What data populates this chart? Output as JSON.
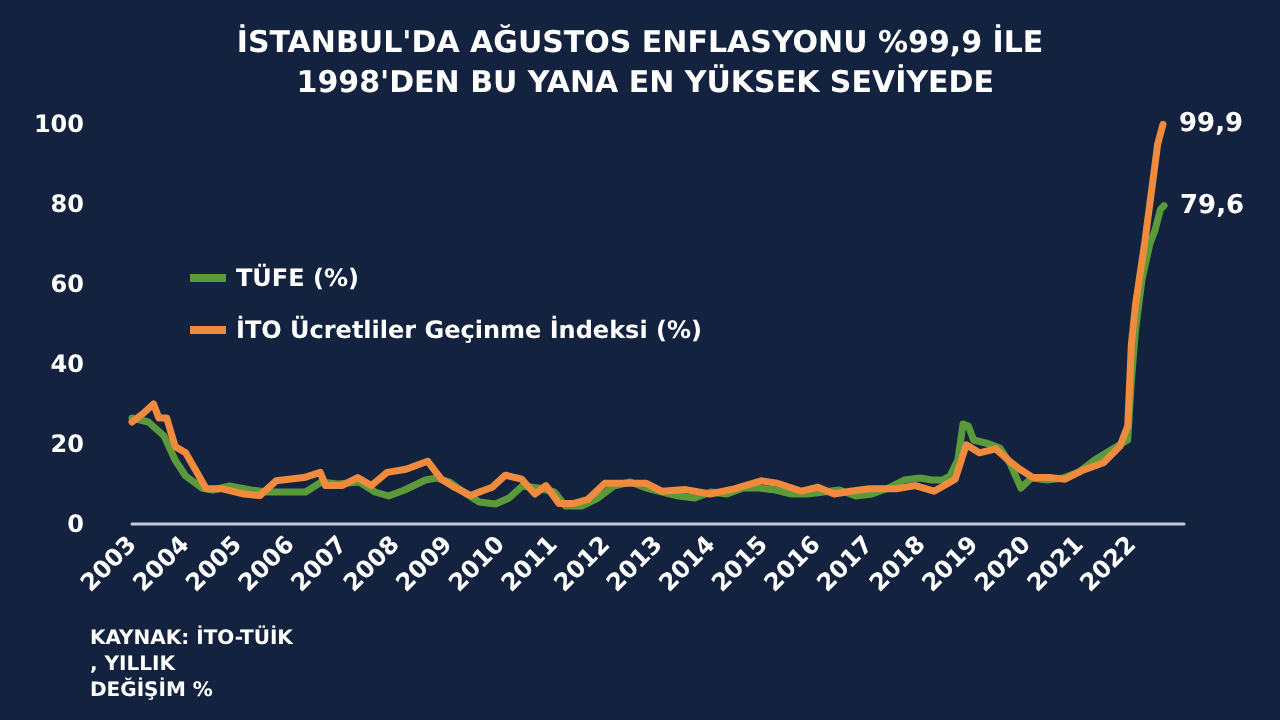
{
  "chart_data": {
    "type": "line",
    "title": "İSTANBUL'DA AĞUSTOS ENFLASYONU %99,9 İLE 1998'DEN BU YANA EN YÜKSEK SEVİYEDE",
    "xlim": [
      2003,
      2023
    ],
    "xticks": [
      2003,
      2004,
      2005,
      2006,
      2007,
      2008,
      2009,
      2010,
      2011,
      2012,
      2013,
      2014,
      2015,
      2016,
      2017,
      2018,
      2019,
      2020,
      2021,
      2022
    ],
    "ylim": [
      0,
      100
    ],
    "yticks": [
      0,
      20,
      40,
      60,
      80,
      100
    ],
    "grid": false,
    "legend": "top left",
    "marker": "none",
    "line_style": "solid",
    "series": [
      {
        "name": "TÜFE (%)",
        "color": "#5a9a3a",
        "x": [
          2003.0,
          2003.31,
          2003.61,
          2003.82,
          2004.02,
          2004.33,
          2004.54,
          2004.85,
          2005.26,
          2005.57,
          2005.88,
          2006.3,
          2006.6,
          2006.91,
          2007.32,
          2007.62,
          2007.88,
          2008.18,
          2008.58,
          2008.79,
          2009.04,
          2009.3,
          2009.6,
          2009.91,
          2010.17,
          2010.42,
          2010.73,
          2011.03,
          2011.24,
          2011.55,
          2011.86,
          2012.16,
          2012.47,
          2012.78,
          2013.08,
          2013.39,
          2013.7,
          2014.0,
          2014.31,
          2014.62,
          2014.92,
          2015.23,
          2015.54,
          2015.84,
          2016.15,
          2016.45,
          2016.76,
          2017.07,
          2017.38,
          2017.68,
          2017.99,
          2018.2,
          2018.4,
          2018.55,
          2018.7,
          2018.8,
          2018.9,
          2019.0,
          2019.3,
          2019.5,
          2019.7,
          2019.9,
          2020.1,
          2020.4,
          2020.7,
          2021.0,
          2021.3,
          2021.55,
          2021.8,
          2021.93,
          2022.0,
          2022.08,
          2022.2,
          2022.35,
          2022.45,
          2022.55,
          2022.62
        ],
        "values": [
          26.5,
          25.5,
          22,
          16,
          12,
          9,
          8.5,
          9.5,
          8.5,
          8,
          8,
          8,
          10.5,
          10,
          10.5,
          8,
          7,
          8.5,
          11,
          11.5,
          10.5,
          8,
          5.5,
          5,
          6.5,
          9.5,
          9,
          8,
          4.5,
          4.5,
          6.5,
          9.5,
          10.5,
          9,
          8,
          7,
          6.5,
          8,
          7.5,
          9,
          9,
          8.5,
          7.5,
          7.5,
          8,
          8.5,
          7,
          7.5,
          9,
          11,
          11.5,
          11,
          11,
          12,
          16,
          25,
          24.5,
          21,
          20,
          19,
          15,
          9,
          11.5,
          11,
          11.5,
          13,
          16,
          18,
          20,
          21,
          36,
          48.7,
          61,
          70,
          73.5,
          78.6,
          79.6
        ]
      },
      {
        "name": "İTO Ücretliler Geçinme İndeksi (%)",
        "color": "#f08a3c",
        "x": [
          2003.0,
          2003.2,
          2003.41,
          2003.51,
          2003.66,
          2003.82,
          2004.02,
          2004.23,
          2004.41,
          2004.72,
          2005.13,
          2005.43,
          2005.74,
          2006.27,
          2006.58,
          2006.68,
          2006.99,
          2007.29,
          2007.55,
          2007.85,
          2008.21,
          2008.62,
          2008.88,
          2009.13,
          2009.44,
          2009.64,
          2009.85,
          2010.1,
          2010.41,
          2010.66,
          2010.87,
          2011.12,
          2011.38,
          2011.66,
          2011.99,
          2012.44,
          2012.77,
          2013.07,
          2013.53,
          2013.99,
          2014.45,
          2014.96,
          2015.27,
          2015.73,
          2016.04,
          2016.35,
          2016.66,
          2017.02,
          2017.53,
          2017.89,
          2018.25,
          2018.65,
          2018.86,
          2019.11,
          2019.42,
          2019.72,
          2019.88,
          2020.13,
          2020.44,
          2020.74,
          2021.05,
          2021.47,
          2021.78,
          2021.93,
          2022.0,
          2022.08,
          2022.25,
          2022.4,
          2022.5,
          2022.6
        ],
        "values": [
          25.5,
          27.5,
          30,
          26.5,
          26.5,
          19.4,
          17.8,
          13,
          8.8,
          8.8,
          7.5,
          7.1,
          10.8,
          11.6,
          12.9,
          9.6,
          9.6,
          11.6,
          9.6,
          12.9,
          13.7,
          15.7,
          11.2,
          9.2,
          7.1,
          8.2,
          9.2,
          12.2,
          11.2,
          7.5,
          9.6,
          5.1,
          5.1,
          6.1,
          10.2,
          10.2,
          10.2,
          8.2,
          8.6,
          7.5,
          8.8,
          10.8,
          10.2,
          8.2,
          9.2,
          7.5,
          8.2,
          8.8,
          8.8,
          9.6,
          8.2,
          11.2,
          19.8,
          17.8,
          18.8,
          15.3,
          13.7,
          11.6,
          11.6,
          11.2,
          13.3,
          15.3,
          19.4,
          24.5,
          45,
          55,
          70,
          85,
          95,
          99.9
        ]
      }
    ],
    "annotations": [
      {
        "text": "99,9",
        "x": 2022.6,
        "y": 99.9
      },
      {
        "text": "79,6",
        "x": 2022.62,
        "y": 79.6
      },
      "KAYNAK: İTO-TÜİK, YILLIK DEĞİŞİM %"
    ]
  }
}
